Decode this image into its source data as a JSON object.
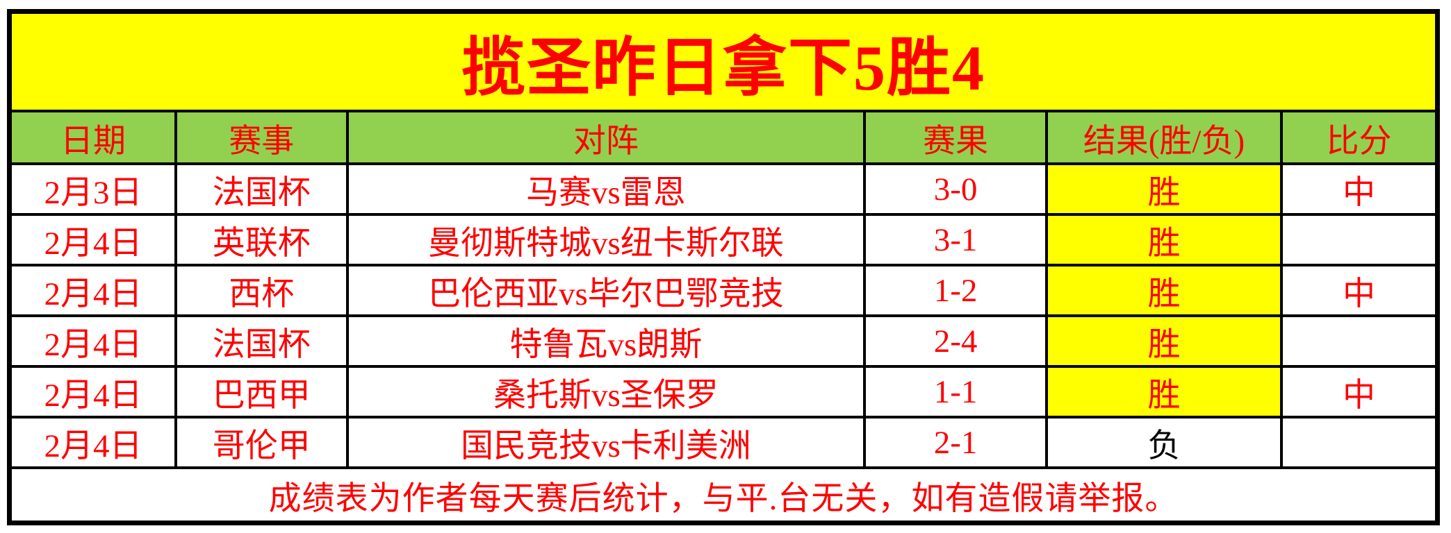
{
  "banner": {
    "title": "揽圣昨日拿下5胜4"
  },
  "colors": {
    "banner_bg": "#ffff00",
    "header_bg": "#92d050",
    "win_bg": "#ffff00",
    "text_red": "#ff0000",
    "loss_text": "#000000",
    "border": "#000000"
  },
  "table": {
    "headers": {
      "date": "日期",
      "league": "赛事",
      "match": "对阵",
      "score": "赛果",
      "result": "结果(胜/负)",
      "hit": "比分"
    },
    "rows": [
      {
        "date": "2月3日",
        "league": "法国杯",
        "match": "马赛vs雷恩",
        "score": "3-0",
        "result": "胜",
        "hit": "中"
      },
      {
        "date": "2月4日",
        "league": "英联杯",
        "match": "曼彻斯特城vs纽卡斯尔联",
        "score": "3-1",
        "result": "胜",
        "hit": ""
      },
      {
        "date": "2月4日",
        "league": "西杯",
        "match": "巴伦西亚vs毕尔巴鄂竞技",
        "score": "1-2",
        "result": "胜",
        "hit": "中"
      },
      {
        "date": "2月4日",
        "league": "法国杯",
        "match": "特鲁瓦vs朗斯",
        "score": "2-4",
        "result": "胜",
        "hit": ""
      },
      {
        "date": "2月4日",
        "league": "巴西甲",
        "match": "桑托斯vs圣保罗",
        "score": "1-1",
        "result": "胜",
        "hit": "中"
      },
      {
        "date": "2月4日",
        "league": "哥伦甲",
        "match": "国民竞技vs卡利美洲",
        "score": "2-1",
        "result": "负",
        "hit": ""
      }
    ],
    "footer": "成绩表为作者每天赛后统计，与平.台无关，如有造假请举报。"
  }
}
